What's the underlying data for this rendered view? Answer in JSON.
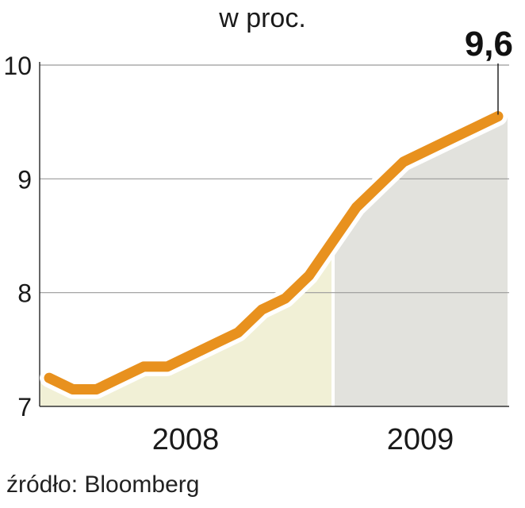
{
  "subtitle": "w proc.",
  "source": "źródło: Bloomberg",
  "colors": {
    "line": "#e8911e",
    "line_halo": "#ffffff",
    "fill_2008": "#f1f0d6",
    "fill_2009": "#e2e2dd",
    "grid": "#9a9a9a",
    "axis": "#333333",
    "text": "#1a1a1a"
  },
  "chart_data": {
    "type": "line",
    "title": "",
    "subtitle": "w proc.",
    "xlabel": "",
    "ylabel": "",
    "ylim": [
      7,
      10
    ],
    "yticks": [
      "7",
      "8",
      "9",
      "10"
    ],
    "grid": true,
    "legend": "none",
    "year_labels": [
      "2008",
      "2009"
    ],
    "end_label": "9,6",
    "end_value": 9.6,
    "series": [
      {
        "values": [
          7.25,
          7.15,
          7.15,
          7.25,
          7.35,
          7.35,
          7.45,
          7.55,
          7.65,
          7.85,
          7.95,
          8.15,
          8.45,
          8.75,
          8.95,
          9.15,
          9.25,
          9.35,
          9.45,
          9.55
        ]
      }
    ]
  }
}
